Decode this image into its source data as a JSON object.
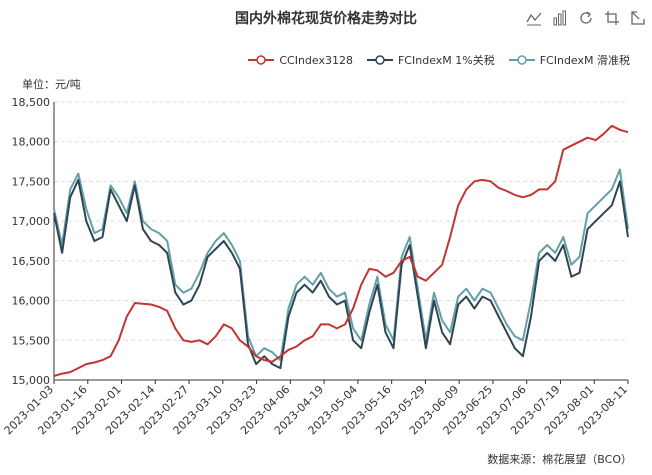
{
  "title": "国内外棉花现货价格走势对比",
  "unit_label": "单位：元/吨",
  "source_label": "数据来源：棉花展望（BCO）",
  "toolbox": [
    "line-icon",
    "bar-icon",
    "restore-icon",
    "zoom-icon",
    "back-icon"
  ],
  "colors": {
    "cc": "#c23531",
    "fc1": "#2f4554",
    "fc2": "#61a0a8"
  },
  "chart_data": {
    "type": "line",
    "ylim": [
      15000,
      18500
    ],
    "yticks": [
      "15,000",
      "15,500",
      "16,000",
      "16,500",
      "17,000",
      "17,500",
      "18,000",
      "18,500"
    ],
    "xtick_labels": [
      "2023-01-03",
      "2023-01-16",
      "2023-02-01",
      "2023-02-14",
      "2023-02-27",
      "2023-03-10",
      "2023-03-23",
      "2023-04-06",
      "2023-04-19",
      "2023-05-04",
      "2023-05-16",
      "2023-05-29",
      "2023-06-09",
      "2023-06-25",
      "2023-07-06",
      "2023-07-19",
      "2023-08-01",
      "2023-08-11"
    ],
    "legend": [
      "CCIndex3128",
      "FCIndexM 1%关税",
      "FCIndexM 滑准税"
    ],
    "series": [
      {
        "name": "CCIndex3128",
        "values": [
          15050,
          15080,
          15100,
          15150,
          15200,
          15220,
          15250,
          15300,
          15500,
          15800,
          15970,
          15960,
          15950,
          15920,
          15870,
          15650,
          15500,
          15480,
          15500,
          15450,
          15550,
          15700,
          15650,
          15500,
          15420,
          15300,
          15250,
          15230,
          15300,
          15380,
          15420,
          15500,
          15550,
          15700,
          15700,
          15650,
          15700,
          15900,
          16200,
          16400,
          16380,
          16300,
          16350,
          16500,
          16550,
          16300,
          16250,
          16350,
          16450,
          16800,
          17200,
          17400,
          17500,
          17520,
          17500,
          17420,
          17380,
          17330,
          17300,
          17330,
          17400,
          17400,
          17500,
          17900,
          17950,
          18000,
          18050,
          18020,
          18100,
          18200,
          18150,
          18120
        ]
      },
      {
        "name": "FCIndexM 1%关税",
        "values": [
          17100,
          16600,
          17300,
          17520,
          17000,
          16750,
          16800,
          17400,
          17200,
          17000,
          17450,
          16900,
          16750,
          16700,
          16600,
          16100,
          15950,
          16000,
          16200,
          16550,
          16650,
          16750,
          16600,
          16400,
          15450,
          15200,
          15300,
          15200,
          15150,
          15800,
          16100,
          16200,
          16100,
          16250,
          16050,
          15950,
          16000,
          15500,
          15400,
          15850,
          16200,
          15600,
          15400,
          16450,
          16700,
          16050,
          15400,
          16000,
          15600,
          15450,
          15950,
          16050,
          15900,
          16050,
          16000,
          15800,
          15600,
          15400,
          15300,
          15800,
          16500,
          16600,
          16500,
          16700,
          16300,
          16350,
          16900,
          17000,
          17100,
          17200,
          17500,
          16800
        ]
      },
      {
        "name": "FCIndexM 滑准税",
        "values": [
          17150,
          16700,
          17400,
          17600,
          17150,
          16850,
          16900,
          17450,
          17300,
          17100,
          17500,
          17000,
          16900,
          16850,
          16750,
          16200,
          16100,
          16150,
          16350,
          16600,
          16750,
          16850,
          16700,
          16500,
          15550,
          15300,
          15400,
          15350,
          15250,
          15900,
          16200,
          16300,
          16200,
          16350,
          16150,
          16050,
          16100,
          15650,
          15500,
          15950,
          16300,
          15700,
          15500,
          16550,
          16800,
          16150,
          15500,
          16100,
          15750,
          15600,
          16050,
          16150,
          16000,
          16150,
          16100,
          15900,
          15700,
          15550,
          15500,
          16000,
          16600,
          16700,
          16600,
          16800,
          16450,
          16550,
          17100,
          17200,
          17300,
          17400,
          17650,
          16900
        ]
      }
    ]
  }
}
